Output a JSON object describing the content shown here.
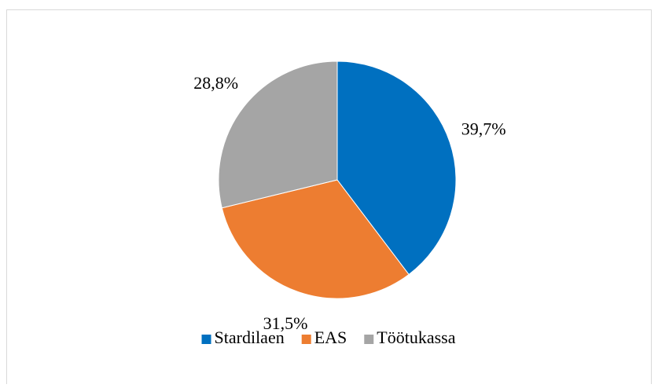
{
  "chart_data": {
    "type": "pie",
    "categories": [
      "Stardilaen",
      "EAS",
      "Töötukassa"
    ],
    "values": [
      39.7,
      31.5,
      28.8
    ],
    "value_labels": [
      "39,7%",
      "31,5%",
      "28,8%"
    ],
    "colors": [
      "#0070c0",
      "#ed7d31",
      "#a5a5a5"
    ],
    "legend": "bottom"
  }
}
